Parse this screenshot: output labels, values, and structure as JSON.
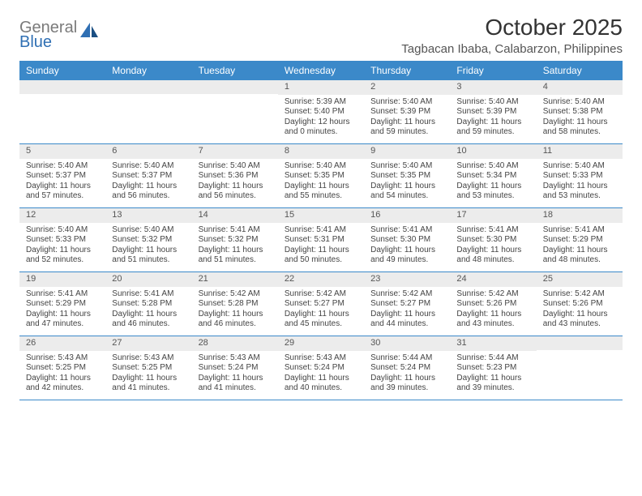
{
  "logo": {
    "line1": "General",
    "line2": "Blue"
  },
  "title": "October 2025",
  "subtitle": "Tagbacan Ibaba, Calabarzon, Philippines",
  "colors": {
    "header_bg": "#3b89c9",
    "header_text": "#ffffff",
    "daynum_bg": "#ececec",
    "border": "#3b89c9",
    "logo_gray": "#7a7a7a",
    "logo_blue": "#2f6fb3",
    "text": "#444444"
  },
  "dayNames": [
    "Sunday",
    "Monday",
    "Tuesday",
    "Wednesday",
    "Thursday",
    "Friday",
    "Saturday"
  ],
  "weeks": [
    [
      {
        "day": "",
        "lines": []
      },
      {
        "day": "",
        "lines": []
      },
      {
        "day": "",
        "lines": []
      },
      {
        "day": "1",
        "lines": [
          "Sunrise: 5:39 AM",
          "Sunset: 5:40 PM",
          "Daylight: 12 hours",
          "and 0 minutes."
        ]
      },
      {
        "day": "2",
        "lines": [
          "Sunrise: 5:40 AM",
          "Sunset: 5:39 PM",
          "Daylight: 11 hours",
          "and 59 minutes."
        ]
      },
      {
        "day": "3",
        "lines": [
          "Sunrise: 5:40 AM",
          "Sunset: 5:39 PM",
          "Daylight: 11 hours",
          "and 59 minutes."
        ]
      },
      {
        "day": "4",
        "lines": [
          "Sunrise: 5:40 AM",
          "Sunset: 5:38 PM",
          "Daylight: 11 hours",
          "and 58 minutes."
        ]
      }
    ],
    [
      {
        "day": "5",
        "lines": [
          "Sunrise: 5:40 AM",
          "Sunset: 5:37 PM",
          "Daylight: 11 hours",
          "and 57 minutes."
        ]
      },
      {
        "day": "6",
        "lines": [
          "Sunrise: 5:40 AM",
          "Sunset: 5:37 PM",
          "Daylight: 11 hours",
          "and 56 minutes."
        ]
      },
      {
        "day": "7",
        "lines": [
          "Sunrise: 5:40 AM",
          "Sunset: 5:36 PM",
          "Daylight: 11 hours",
          "and 56 minutes."
        ]
      },
      {
        "day": "8",
        "lines": [
          "Sunrise: 5:40 AM",
          "Sunset: 5:35 PM",
          "Daylight: 11 hours",
          "and 55 minutes."
        ]
      },
      {
        "day": "9",
        "lines": [
          "Sunrise: 5:40 AM",
          "Sunset: 5:35 PM",
          "Daylight: 11 hours",
          "and 54 minutes."
        ]
      },
      {
        "day": "10",
        "lines": [
          "Sunrise: 5:40 AM",
          "Sunset: 5:34 PM",
          "Daylight: 11 hours",
          "and 53 minutes."
        ]
      },
      {
        "day": "11",
        "lines": [
          "Sunrise: 5:40 AM",
          "Sunset: 5:33 PM",
          "Daylight: 11 hours",
          "and 53 minutes."
        ]
      }
    ],
    [
      {
        "day": "12",
        "lines": [
          "Sunrise: 5:40 AM",
          "Sunset: 5:33 PM",
          "Daylight: 11 hours",
          "and 52 minutes."
        ]
      },
      {
        "day": "13",
        "lines": [
          "Sunrise: 5:40 AM",
          "Sunset: 5:32 PM",
          "Daylight: 11 hours",
          "and 51 minutes."
        ]
      },
      {
        "day": "14",
        "lines": [
          "Sunrise: 5:41 AM",
          "Sunset: 5:32 PM",
          "Daylight: 11 hours",
          "and 51 minutes."
        ]
      },
      {
        "day": "15",
        "lines": [
          "Sunrise: 5:41 AM",
          "Sunset: 5:31 PM",
          "Daylight: 11 hours",
          "and 50 minutes."
        ]
      },
      {
        "day": "16",
        "lines": [
          "Sunrise: 5:41 AM",
          "Sunset: 5:30 PM",
          "Daylight: 11 hours",
          "and 49 minutes."
        ]
      },
      {
        "day": "17",
        "lines": [
          "Sunrise: 5:41 AM",
          "Sunset: 5:30 PM",
          "Daylight: 11 hours",
          "and 48 minutes."
        ]
      },
      {
        "day": "18",
        "lines": [
          "Sunrise: 5:41 AM",
          "Sunset: 5:29 PM",
          "Daylight: 11 hours",
          "and 48 minutes."
        ]
      }
    ],
    [
      {
        "day": "19",
        "lines": [
          "Sunrise: 5:41 AM",
          "Sunset: 5:29 PM",
          "Daylight: 11 hours",
          "and 47 minutes."
        ]
      },
      {
        "day": "20",
        "lines": [
          "Sunrise: 5:41 AM",
          "Sunset: 5:28 PM",
          "Daylight: 11 hours",
          "and 46 minutes."
        ]
      },
      {
        "day": "21",
        "lines": [
          "Sunrise: 5:42 AM",
          "Sunset: 5:28 PM",
          "Daylight: 11 hours",
          "and 46 minutes."
        ]
      },
      {
        "day": "22",
        "lines": [
          "Sunrise: 5:42 AM",
          "Sunset: 5:27 PM",
          "Daylight: 11 hours",
          "and 45 minutes."
        ]
      },
      {
        "day": "23",
        "lines": [
          "Sunrise: 5:42 AM",
          "Sunset: 5:27 PM",
          "Daylight: 11 hours",
          "and 44 minutes."
        ]
      },
      {
        "day": "24",
        "lines": [
          "Sunrise: 5:42 AM",
          "Sunset: 5:26 PM",
          "Daylight: 11 hours",
          "and 43 minutes."
        ]
      },
      {
        "day": "25",
        "lines": [
          "Sunrise: 5:42 AM",
          "Sunset: 5:26 PM",
          "Daylight: 11 hours",
          "and 43 minutes."
        ]
      }
    ],
    [
      {
        "day": "26",
        "lines": [
          "Sunrise: 5:43 AM",
          "Sunset: 5:25 PM",
          "Daylight: 11 hours",
          "and 42 minutes."
        ]
      },
      {
        "day": "27",
        "lines": [
          "Sunrise: 5:43 AM",
          "Sunset: 5:25 PM",
          "Daylight: 11 hours",
          "and 41 minutes."
        ]
      },
      {
        "day": "28",
        "lines": [
          "Sunrise: 5:43 AM",
          "Sunset: 5:24 PM",
          "Daylight: 11 hours",
          "and 41 minutes."
        ]
      },
      {
        "day": "29",
        "lines": [
          "Sunrise: 5:43 AM",
          "Sunset: 5:24 PM",
          "Daylight: 11 hours",
          "and 40 minutes."
        ]
      },
      {
        "day": "30",
        "lines": [
          "Sunrise: 5:44 AM",
          "Sunset: 5:24 PM",
          "Daylight: 11 hours",
          "and 39 minutes."
        ]
      },
      {
        "day": "31",
        "lines": [
          "Sunrise: 5:44 AM",
          "Sunset: 5:23 PM",
          "Daylight: 11 hours",
          "and 39 minutes."
        ]
      },
      {
        "day": "",
        "lines": []
      }
    ]
  ]
}
